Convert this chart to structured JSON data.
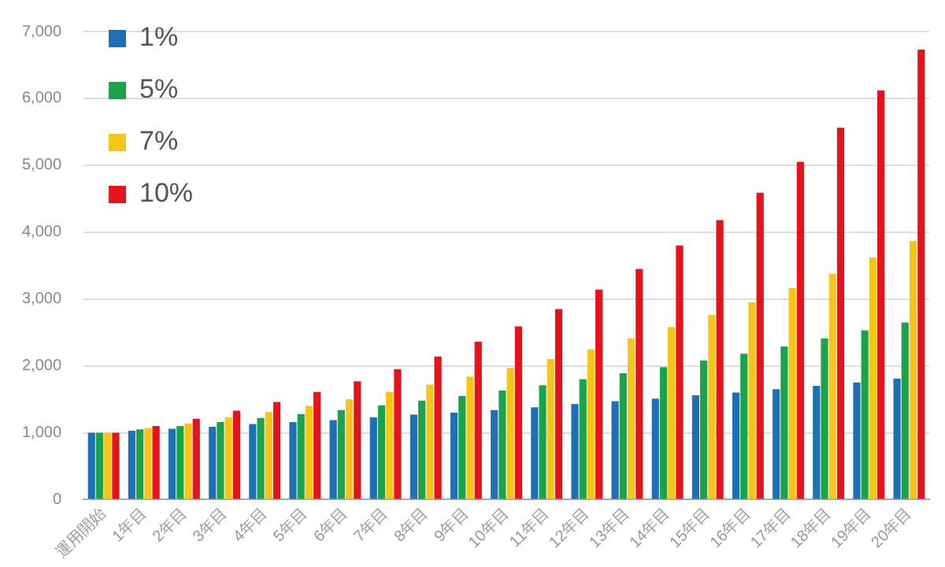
{
  "chart_data": {
    "type": "bar",
    "categories": [
      "運用開始",
      "1年目",
      "2年目",
      "3年目",
      "4年目",
      "5年目",
      "6年目",
      "7年目",
      "8年目",
      "9年目",
      "10年目",
      "11年目",
      "12年目",
      "13年目",
      "14年目",
      "15年目",
      "16年目",
      "17年目",
      "18年目",
      "19年目",
      "20年目"
    ],
    "series": [
      {
        "name": "1%",
        "color": "#1f6fb4",
        "values": [
          1000,
          1030,
          1060,
          1090,
          1130,
          1160,
          1190,
          1230,
          1270,
          1300,
          1340,
          1380,
          1430,
          1470,
          1510,
          1560,
          1600,
          1650,
          1700,
          1750,
          1810
        ]
      },
      {
        "name": "5%",
        "color": "#1aa34a",
        "values": [
          1000,
          1050,
          1100,
          1160,
          1220,
          1280,
          1340,
          1410,
          1480,
          1550,
          1630,
          1710,
          1800,
          1890,
          1980,
          2080,
          2180,
          2290,
          2410,
          2530,
          2650
        ]
      },
      {
        "name": "7%",
        "color": "#f5c518",
        "values": [
          1000,
          1070,
          1140,
          1230,
          1310,
          1400,
          1500,
          1610,
          1720,
          1840,
          1970,
          2100,
          2250,
          2410,
          2580,
          2760,
          2950,
          3160,
          3380,
          3620,
          3870
        ]
      },
      {
        "name": "10%",
        "color": "#e3141b",
        "values": [
          1000,
          1100,
          1210,
          1330,
          1460,
          1610,
          1770,
          1950,
          2140,
          2360,
          2590,
          2850,
          3140,
          3450,
          3800,
          4180,
          4590,
          5050,
          5560,
          6120,
          6730
        ]
      }
    ],
    "ylim": [
      0,
      7000
    ],
    "yticks": [
      0,
      {
        "value": 1000,
        "label": "1,000"
      },
      {
        "value": 2000,
        "label": "2,000"
      },
      {
        "value": 3000,
        "label": "3,000"
      },
      {
        "value": 4000,
        "label": "4,000"
      },
      {
        "value": 5000,
        "label": "5,000"
      },
      {
        "value": 6000,
        "label": "6,000"
      },
      {
        "value": 7000,
        "label": "7,000"
      }
    ],
    "grid": "y",
    "legend": "top left"
  }
}
